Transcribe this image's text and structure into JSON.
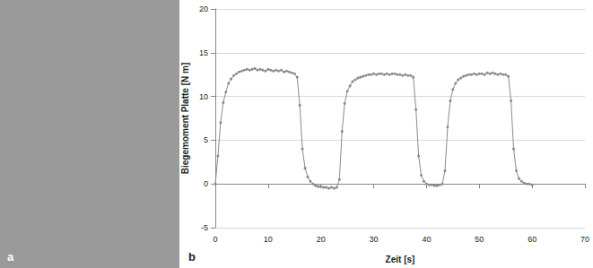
{
  "panel_labels": [
    "a",
    "b"
  ],
  "chart_data": {
    "type": "line",
    "x_label": "Zeit [s]",
    "y_label": "Biegemoment Platte [N m]",
    "xlim": [
      0,
      70
    ],
    "xticks": [
      0,
      10,
      20,
      30,
      40,
      50,
      60,
      70
    ],
    "ylim": [
      -5,
      20
    ],
    "yticks": [
      -5,
      0,
      5,
      10,
      15,
      20
    ],
    "grid": true,
    "color": "#8a8a8a",
    "marker": "circle",
    "x": [
      0,
      0.5,
      1,
      1.5,
      2,
      2.5,
      3,
      3.5,
      4,
      4.5,
      5,
      5.5,
      6,
      6.5,
      7,
      7.5,
      8,
      8.5,
      9,
      9.5,
      10,
      10.5,
      11,
      11.5,
      12,
      12.5,
      13,
      13.5,
      14,
      14.5,
      15,
      15.5,
      16,
      16.5,
      17,
      17.5,
      18,
      18.5,
      19,
      19.5,
      20,
      20.5,
      21,
      21.5,
      22,
      22.5,
      23,
      23.5,
      24,
      24.5,
      25,
      25.5,
      26,
      26.5,
      27,
      27.5,
      28,
      28.5,
      29,
      29.5,
      30,
      30.5,
      31,
      31.5,
      32,
      32.5,
      33,
      33.5,
      34,
      34.5,
      35,
      35.5,
      36,
      36.5,
      37,
      37.5,
      38,
      38.5,
      39,
      39.5,
      40,
      40.5,
      41,
      41.5,
      42,
      42.5,
      43,
      43.5,
      44,
      44.5,
      45,
      45.5,
      46,
      46.5,
      47,
      47.5,
      48,
      48.5,
      49,
      49.5,
      50,
      50.5,
      51,
      51.5,
      52,
      52.5,
      53,
      53.5,
      54,
      54.5,
      55,
      55.5,
      56,
      56.5,
      57,
      57.5,
      58,
      58.5,
      59,
      59.5,
      60
    ],
    "values": [
      0,
      3.2,
      7,
      9.3,
      10.5,
      11.5,
      12,
      12.4,
      12.6,
      12.8,
      12.9,
      13,
      13.1,
      13,
      13.1,
      13.2,
      13,
      13.1,
      13,
      12.9,
      13.1,
      13,
      12.9,
      13,
      12.9,
      13,
      12.8,
      12.9,
      12.8,
      12.7,
      12.6,
      12.2,
      9,
      4,
      1.8,
      0.8,
      0.3,
      0,
      -0.2,
      -0.3,
      -0.3,
      -0.4,
      -0.4,
      -0.5,
      -0.4,
      -0.5,
      -0.4,
      0.5,
      6,
      9.2,
      10.6,
      11.2,
      11.7,
      11.9,
      12.1,
      12.2,
      12.3,
      12.4,
      12.5,
      12.5,
      12.6,
      12.5,
      12.6,
      12.6,
      12.5,
      12.6,
      12.5,
      12.6,
      12.6,
      12.5,
      12.5,
      12.4,
      12.5,
      12.4,
      12.4,
      12.2,
      8.5,
      3.2,
      1,
      0.3,
      0,
      -0.1,
      -0.1,
      -0.2,
      -0.2,
      -0.1,
      0,
      1.5,
      6.5,
      9.5,
      10.8,
      11.5,
      11.9,
      12.1,
      12.3,
      12.4,
      12.5,
      12.5,
      12.6,
      12.5,
      12.6,
      12.6,
      12.5,
      12.7,
      12.6,
      12.7,
      12.6,
      12.5,
      12.6,
      12.5,
      12.5,
      12.3,
      9.5,
      4,
      1.5,
      0.6,
      0.3,
      0.1,
      0,
      0,
      -0.1
    ]
  }
}
